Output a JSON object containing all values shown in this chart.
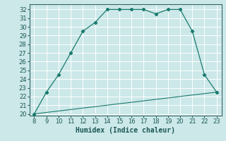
{
  "x_main": [
    8,
    9,
    10,
    11,
    12,
    13,
    14,
    15,
    16,
    17,
    18,
    19,
    20,
    21,
    22,
    23
  ],
  "y_main": [
    20,
    22.5,
    24.5,
    27,
    29.5,
    30.5,
    32,
    32,
    32,
    32,
    31.5,
    32,
    32,
    29.5,
    24.5,
    22.5
  ],
  "x_ref": [
    8,
    9,
    10,
    11,
    12,
    13,
    14,
    15,
    16,
    17,
    18,
    19,
    20,
    21,
    22,
    23
  ],
  "y_ref": [
    20,
    20.17,
    20.33,
    20.5,
    20.67,
    20.83,
    21.0,
    21.17,
    21.33,
    21.5,
    21.67,
    21.83,
    22.0,
    22.17,
    22.33,
    22.5
  ],
  "color_main": "#1a7a6e",
  "color_ref": "#1a7a6e",
  "xlabel": "Humidex (Indice chaleur)",
  "xlim": [
    7.6,
    23.4
  ],
  "ylim": [
    19.8,
    32.6
  ],
  "yticks": [
    20,
    21,
    22,
    23,
    24,
    25,
    26,
    27,
    28,
    29,
    30,
    31,
    32
  ],
  "xticks": [
    8,
    9,
    10,
    11,
    12,
    13,
    14,
    15,
    16,
    17,
    18,
    19,
    20,
    21,
    22,
    23
  ],
  "bg_color": "#cce8e8",
  "grid_color": "#b8d8d8",
  "label_fontsize": 7,
  "tick_fontsize": 6
}
